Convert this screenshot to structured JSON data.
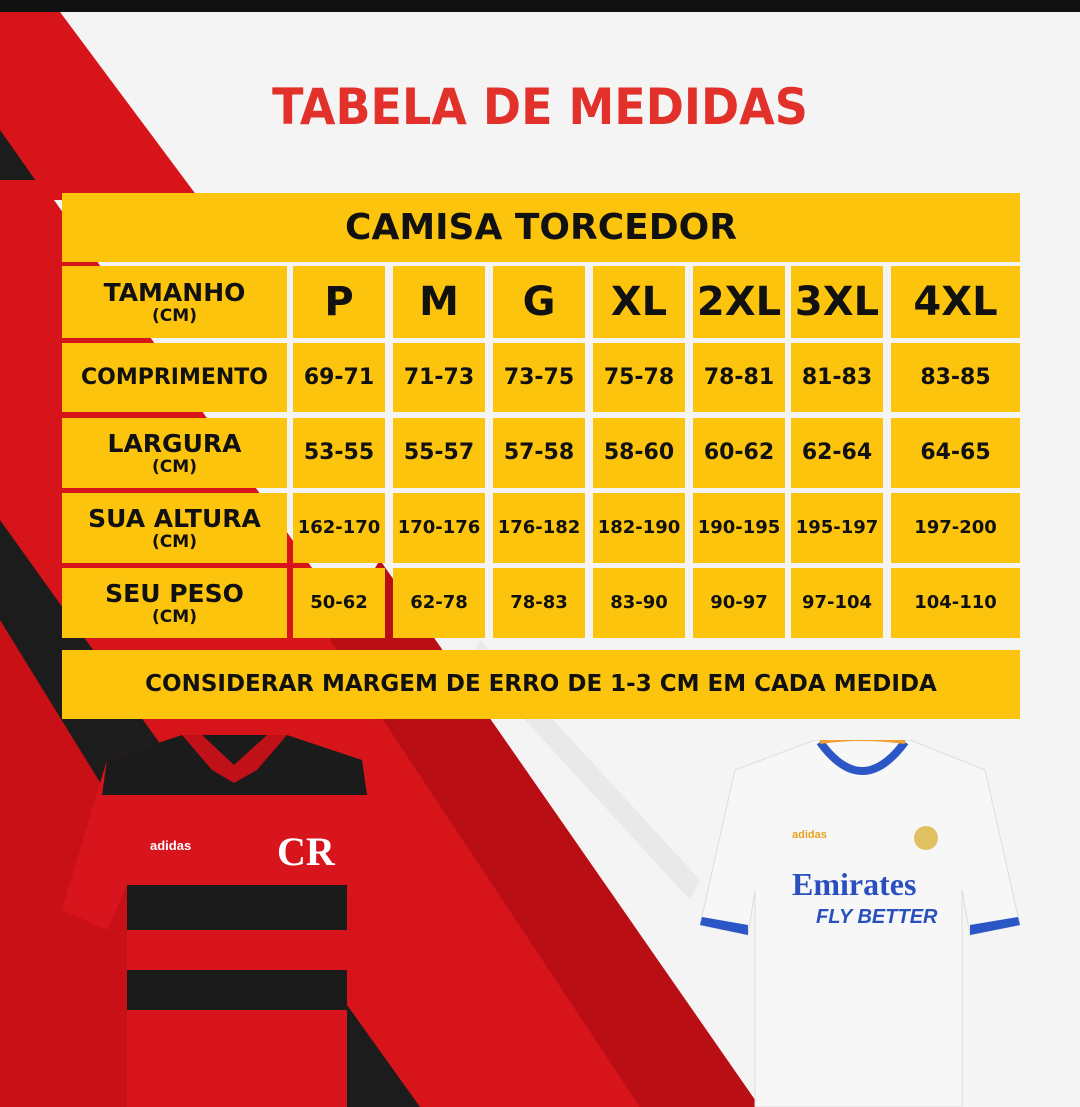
{
  "title": "TABELA DE MEDIDAS",
  "table": {
    "heading": "CAMISA TORCEDOR",
    "size_header": {
      "label": "TAMANHO",
      "unit": "(CM)"
    },
    "sizes": [
      "P",
      "M",
      "G",
      "XL",
      "2XL",
      "3XL",
      "4XL"
    ],
    "rows": [
      {
        "label": "COMPRIMENTO",
        "unit": "",
        "values": [
          "69-71",
          "71-73",
          "73-75",
          "75-78",
          "78-81",
          "81-83",
          "83-85"
        ]
      },
      {
        "label": "LARGURA",
        "unit": "(CM)",
        "values": [
          "53-55",
          "55-57",
          "57-58",
          "58-60",
          "60-62",
          "62-64",
          "64-65"
        ]
      },
      {
        "label": "SUA ALTURA",
        "unit": "(CM)",
        "values": [
          "162-170",
          "170-176",
          "176-182",
          "182-190",
          "190-195",
          "195-197",
          "197-200"
        ]
      },
      {
        "label": "SEU PESO",
        "unit": "(CM)",
        "values": [
          "50-62",
          "62-78",
          "78-83",
          "83-90",
          "90-97",
          "97-104",
          "104-110"
        ]
      }
    ],
    "footer": "CONSIDERAR MARGEM DE ERRO DE 1-3 CM EM CADA MEDIDA"
  },
  "jerseys": {
    "left_brand": "adidas",
    "right_brand": "adidas",
    "right_sponsor": "Emirates",
    "right_sponsor_tagline": "FLY BETTER"
  },
  "colors": {
    "title": "#e2302a",
    "cell": "#fcc40c",
    "red": "#d7141a",
    "dark": "#1a1a1a"
  }
}
